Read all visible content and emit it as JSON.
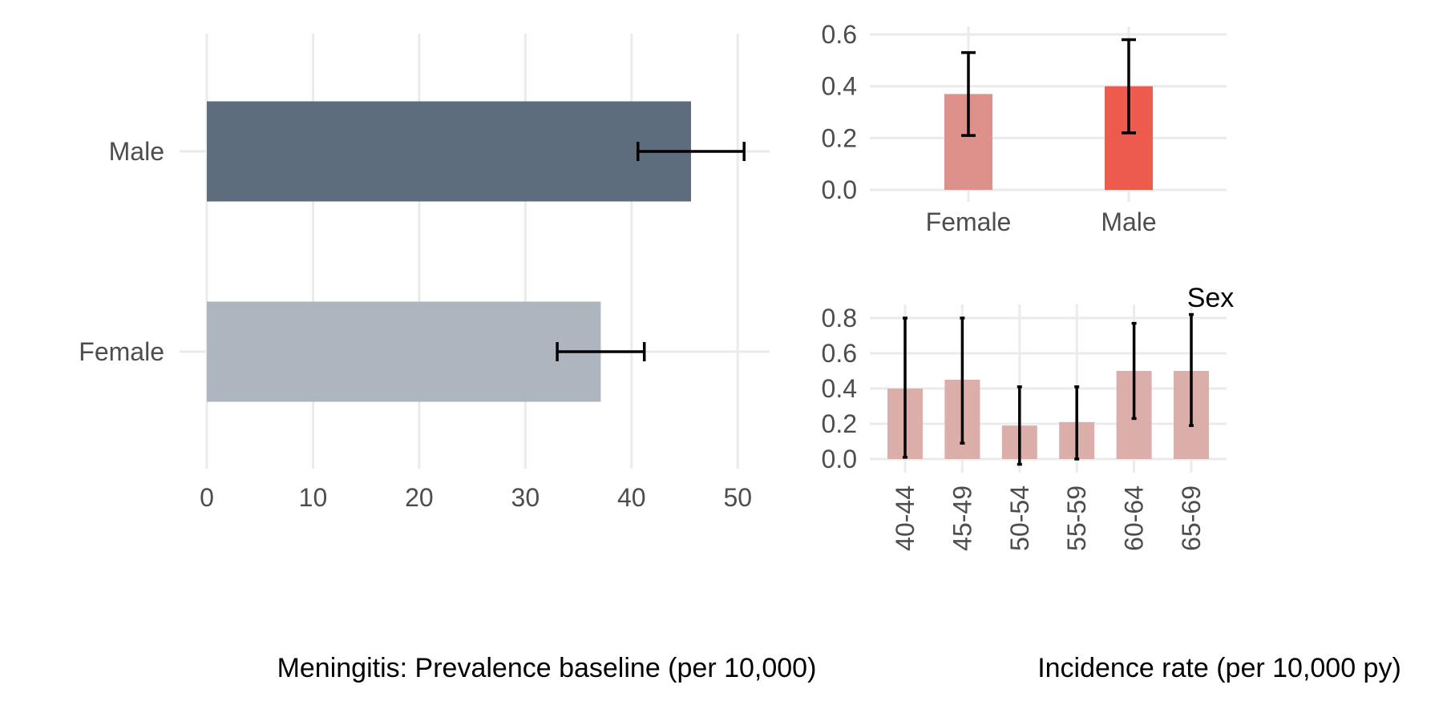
{
  "chart_data": [
    {
      "type": "bar",
      "orientation": "horizontal",
      "categories": [
        "Male",
        "Female"
      ],
      "values": [
        45.6,
        37.1
      ],
      "error_low": [
        40.6,
        33.0
      ],
      "error_high": [
        50.6,
        41.2
      ],
      "colors": [
        "#5d6d7e",
        "#adb5bf"
      ],
      "xlabel": "Meningitis: Prevalence baseline (per 10,000)",
      "ylabel": "",
      "xlim": [
        0,
        53
      ],
      "xticks": [
        "0",
        "10",
        "20",
        "30",
        "40",
        "50"
      ],
      "grid": true,
      "legend": "none"
    },
    {
      "type": "bar",
      "categories": [
        "Female",
        "Male"
      ],
      "values": [
        0.37,
        0.4
      ],
      "error_low": [
        0.21,
        0.22
      ],
      "error_high": [
        0.53,
        0.58
      ],
      "colors": [
        "#de918a",
        "#ec5b4b"
      ],
      "xlabel": "Sex",
      "ylabel": "",
      "ylim": [
        0,
        0.6
      ],
      "yticks": [
        "0.0",
        "0.2",
        "0.4",
        "0.6"
      ],
      "grid": true,
      "legend": "none"
    },
    {
      "type": "bar",
      "categories": [
        "40-44",
        "45-49",
        "50-54",
        "55-59",
        "60-64",
        "65-69"
      ],
      "values": [
        0.4,
        0.45,
        0.19,
        0.21,
        0.5,
        0.5
      ],
      "error_low": [
        0.01,
        0.09,
        -0.03,
        0.0,
        0.23,
        0.19
      ],
      "error_high": [
        0.8,
        0.8,
        0.41,
        0.41,
        0.77,
        0.82
      ],
      "color": "#dcaea9",
      "xlabel": "Incidence rate (per 10,000 py)",
      "ylabel": "",
      "ylim": [
        0,
        0.8
      ],
      "yticks": [
        "0.0",
        "0.2",
        "0.4",
        "0.6",
        "0.8"
      ],
      "grid": true,
      "legend": "none"
    }
  ]
}
